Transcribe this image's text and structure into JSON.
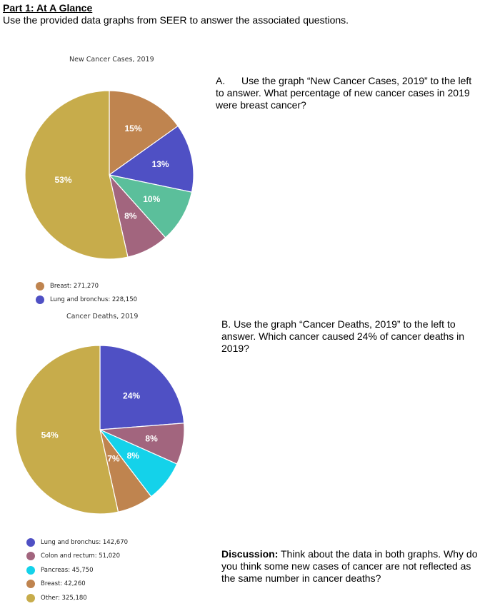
{
  "header": {
    "title": "Part 1: At A Glance",
    "subtitle": "Use the provided data graphs from SEER to answer the associated questions."
  },
  "chart_data": [
    {
      "type": "pie",
      "title": "New Cancer Cases, 2019",
      "slices": [
        {
          "label": "Breast",
          "percent": 15,
          "color": "#bf844f"
        },
        {
          "label": "Lung and bronchus",
          "percent": 13,
          "color": "#4f50c4"
        },
        {
          "label": "",
          "percent": 10,
          "color": "#5bbf9b"
        },
        {
          "label": "",
          "percent": 8,
          "color": "#a2657e"
        },
        {
          "label": "",
          "percent": 53,
          "color": "#c7ac4b"
        }
      ],
      "legend": [
        {
          "text": "Breast: 271,270",
          "color": "#bf844f"
        },
        {
          "text": "Lung and bronchus: 228,150",
          "color": "#4f50c4"
        }
      ]
    },
    {
      "type": "pie",
      "title": "Cancer Deaths, 2019",
      "slices": [
        {
          "label": "Lung and bronchus",
          "percent": 24,
          "color": "#4f50c4"
        },
        {
          "label": "Colon and rectum",
          "percent": 8,
          "color": "#a2657e"
        },
        {
          "label": "Pancreas",
          "percent": 8,
          "color": "#14d2ea"
        },
        {
          "label": "Breast",
          "percent": 7,
          "color": "#bf844f"
        },
        {
          "label": "Other",
          "percent": 54,
          "color": "#c7ac4b"
        }
      ],
      "legend": [
        {
          "text": "Lung and bronchus: 142,670",
          "color": "#4f50c4"
        },
        {
          "text": "Colon and rectum: 51,020",
          "color": "#a2657e"
        },
        {
          "text": "Pancreas: 45,750",
          "color": "#14d2ea"
        },
        {
          "text": "Breast: 42,260",
          "color": "#bf844f"
        },
        {
          "text": "Other: 325,180",
          "color": "#c7ac4b"
        }
      ]
    }
  ],
  "questions": {
    "a_label": "A.",
    "a_text": "Use the graph “New Cancer Cases, 2019” to the left to answer. What percentage of new cancer cases in 2019 were breast cancer?",
    "b_text": "B. Use the graph “Cancer Deaths, 2019” to the left to answer.  Which cancer caused 24% of cancer deaths in 2019?",
    "discussion_label": "Discussion:",
    "discussion_text": "  Think about the data in both graphs. Why do you think some new cases of cancer are not reflected as the same number in cancer deaths?"
  }
}
